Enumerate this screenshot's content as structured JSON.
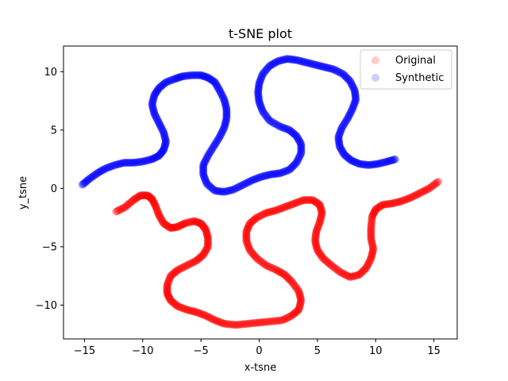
{
  "chart_data": {
    "type": "scatter",
    "title": "t-SNE plot",
    "xlabel": "x-tsne",
    "ylabel": "y_tsne",
    "xlim": [
      -16.8,
      17.0
    ],
    "ylim": [
      -12.9,
      12.2
    ],
    "x_ticks": [
      -15,
      -10,
      -5,
      0,
      5,
      10,
      15
    ],
    "y_ticks": [
      -10,
      -5,
      0,
      5,
      10
    ],
    "x_tick_labels": [
      "−15",
      "−10",
      "−5",
      "0",
      "5",
      "10",
      "15"
    ],
    "y_tick_labels": [
      "−10",
      "−5",
      "0",
      "5",
      "10"
    ],
    "grid": false,
    "legend_position": "top-right",
    "series": [
      {
        "name": "Original",
        "color": "#ff0000",
        "alpha": 0.2,
        "path": [
          [
            -12.3,
            -2.0
          ],
          [
            -11.5,
            -1.6
          ],
          [
            -10.8,
            -1.0
          ],
          [
            -10.2,
            -0.6
          ],
          [
            -9.6,
            -0.6
          ],
          [
            -9.2,
            -0.9
          ],
          [
            -8.9,
            -1.5
          ],
          [
            -8.6,
            -2.3
          ],
          [
            -8.2,
            -3.0
          ],
          [
            -7.6,
            -3.4
          ],
          [
            -7.0,
            -3.3
          ],
          [
            -6.4,
            -3.0
          ],
          [
            -5.6,
            -2.8
          ],
          [
            -5.0,
            -3.0
          ],
          [
            -4.6,
            -3.5
          ],
          [
            -4.4,
            -4.2
          ],
          [
            -4.4,
            -5.0
          ],
          [
            -4.8,
            -5.7
          ],
          [
            -5.4,
            -6.2
          ],
          [
            -6.2,
            -6.6
          ],
          [
            -7.0,
            -7.0
          ],
          [
            -7.6,
            -7.5
          ],
          [
            -7.9,
            -8.3
          ],
          [
            -7.9,
            -9.0
          ],
          [
            -7.6,
            -9.6
          ],
          [
            -7.0,
            -10.1
          ],
          [
            -6.2,
            -10.4
          ],
          [
            -5.4,
            -10.6
          ],
          [
            -4.6,
            -10.9
          ],
          [
            -3.8,
            -11.3
          ],
          [
            -3.0,
            -11.6
          ],
          [
            -2.0,
            -11.7
          ],
          [
            -1.0,
            -11.6
          ],
          [
            0.0,
            -11.5
          ],
          [
            1.0,
            -11.4
          ],
          [
            2.0,
            -11.3
          ],
          [
            2.8,
            -10.9
          ],
          [
            3.4,
            -10.4
          ],
          [
            3.6,
            -9.6
          ],
          [
            3.4,
            -8.8
          ],
          [
            2.8,
            -8.0
          ],
          [
            2.2,
            -7.4
          ],
          [
            1.5,
            -7.0
          ],
          [
            0.6,
            -6.6
          ],
          [
            -0.2,
            -6.0
          ],
          [
            -0.8,
            -5.3
          ],
          [
            -1.1,
            -4.5
          ],
          [
            -1.1,
            -3.7
          ],
          [
            -0.8,
            -3.0
          ],
          [
            -0.2,
            -2.5
          ],
          [
            0.6,
            -2.1
          ],
          [
            1.4,
            -1.9
          ],
          [
            2.2,
            -1.6
          ],
          [
            3.0,
            -1.3
          ],
          [
            3.8,
            -1.0
          ],
          [
            4.6,
            -1.0
          ],
          [
            5.2,
            -1.4
          ],
          [
            5.4,
            -2.1
          ],
          [
            5.2,
            -2.9
          ],
          [
            4.9,
            -3.7
          ],
          [
            4.8,
            -4.5
          ],
          [
            5.0,
            -5.3
          ],
          [
            5.5,
            -6.0
          ],
          [
            6.2,
            -6.6
          ],
          [
            7.0,
            -7.2
          ],
          [
            7.8,
            -7.6
          ],
          [
            8.6,
            -7.4
          ],
          [
            9.2,
            -6.8
          ],
          [
            9.6,
            -6.0
          ],
          [
            9.8,
            -5.2
          ],
          [
            9.6,
            -4.3
          ],
          [
            9.6,
            -3.4
          ],
          [
            9.7,
            -2.4
          ],
          [
            10.0,
            -1.8
          ],
          [
            10.6,
            -1.4
          ],
          [
            11.4,
            -1.3
          ],
          [
            12.2,
            -1.1
          ],
          [
            13.0,
            -0.8
          ],
          [
            13.8,
            -0.4
          ],
          [
            14.6,
            0.0
          ],
          [
            15.4,
            0.6
          ]
        ]
      },
      {
        "name": "Synthetic",
        "color": "#0000ff",
        "alpha": 0.2,
        "path": [
          [
            -15.2,
            0.3
          ],
          [
            -14.6,
            0.8
          ],
          [
            -13.9,
            1.3
          ],
          [
            -13.2,
            1.7
          ],
          [
            -12.4,
            2.0
          ],
          [
            -11.6,
            2.2
          ],
          [
            -10.8,
            2.2
          ],
          [
            -10.0,
            2.3
          ],
          [
            -9.2,
            2.5
          ],
          [
            -8.6,
            2.8
          ],
          [
            -8.2,
            3.3
          ],
          [
            -8.0,
            4.0
          ],
          [
            -8.2,
            4.8
          ],
          [
            -8.6,
            5.6
          ],
          [
            -9.0,
            6.4
          ],
          [
            -9.2,
            7.2
          ],
          [
            -9.0,
            8.0
          ],
          [
            -8.6,
            8.6
          ],
          [
            -8.0,
            9.1
          ],
          [
            -7.2,
            9.4
          ],
          [
            -6.6,
            9.6
          ],
          [
            -5.8,
            9.7
          ],
          [
            -5.0,
            9.7
          ],
          [
            -4.4,
            9.5
          ],
          [
            -3.8,
            9.1
          ],
          [
            -3.4,
            8.4
          ],
          [
            -3.0,
            7.6
          ],
          [
            -2.8,
            6.8
          ],
          [
            -2.8,
            6.0
          ],
          [
            -3.0,
            5.2
          ],
          [
            -3.4,
            4.4
          ],
          [
            -3.9,
            3.6
          ],
          [
            -4.4,
            2.8
          ],
          [
            -4.8,
            2.0
          ],
          [
            -4.8,
            1.2
          ],
          [
            -4.5,
            0.4
          ],
          [
            -3.8,
            -0.2
          ],
          [
            -3.0,
            -0.3
          ],
          [
            -2.2,
            -0.1
          ],
          [
            -1.4,
            0.3
          ],
          [
            -0.6,
            0.7
          ],
          [
            0.2,
            1.0
          ],
          [
            1.0,
            1.2
          ],
          [
            1.8,
            1.3
          ],
          [
            2.6,
            1.6
          ],
          [
            3.2,
            2.2
          ],
          [
            3.6,
            3.0
          ],
          [
            3.6,
            3.8
          ],
          [
            3.2,
            4.5
          ],
          [
            2.6,
            5.0
          ],
          [
            1.8,
            5.3
          ],
          [
            0.9,
            5.8
          ],
          [
            0.3,
            6.6
          ],
          [
            0.0,
            7.4
          ],
          [
            -0.1,
            8.2
          ],
          [
            0.0,
            9.0
          ],
          [
            0.3,
            9.8
          ],
          [
            0.9,
            10.5
          ],
          [
            1.6,
            10.9
          ],
          [
            2.4,
            11.1
          ],
          [
            3.2,
            11.0
          ],
          [
            4.0,
            10.8
          ],
          [
            4.8,
            10.6
          ],
          [
            5.6,
            10.4
          ],
          [
            6.4,
            10.2
          ],
          [
            7.2,
            9.8
          ],
          [
            7.8,
            9.2
          ],
          [
            8.2,
            8.4
          ],
          [
            8.3,
            7.6
          ],
          [
            8.0,
            6.8
          ],
          [
            7.6,
            6.0
          ],
          [
            7.1,
            5.2
          ],
          [
            6.8,
            4.4
          ],
          [
            6.9,
            3.6
          ],
          [
            7.3,
            2.9
          ],
          [
            7.9,
            2.4
          ],
          [
            8.6,
            2.1
          ],
          [
            9.4,
            2.0
          ],
          [
            10.2,
            2.1
          ],
          [
            11.0,
            2.3
          ],
          [
            11.7,
            2.5
          ]
        ]
      }
    ]
  }
}
